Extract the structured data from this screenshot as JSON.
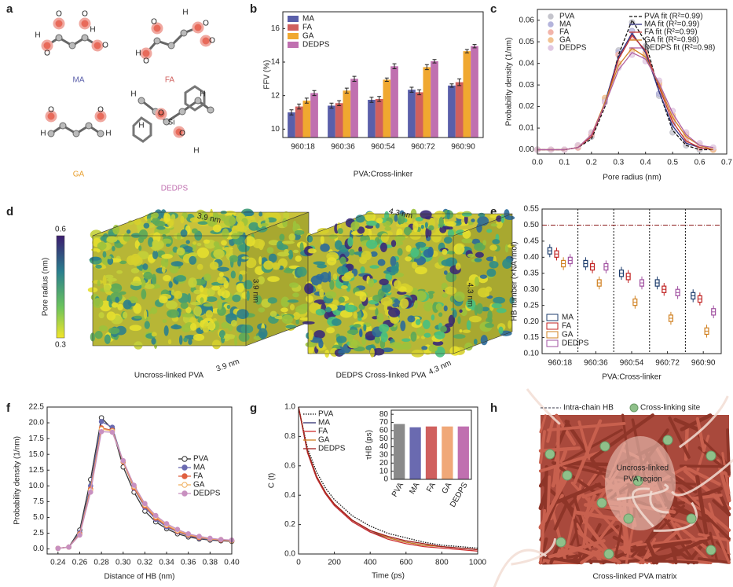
{
  "panel_labels": [
    "a",
    "b",
    "c",
    "d",
    "e",
    "f",
    "g",
    "h"
  ],
  "molecules": [
    {
      "name": "MA",
      "color": "#5a5faa",
      "atoms": [
        "H",
        "O",
        "O",
        "O",
        "O",
        "H"
      ]
    },
    {
      "name": "FA",
      "color": "#d0605e",
      "atoms": [
        "H",
        "O",
        "O",
        "O",
        "O",
        "H"
      ]
    },
    {
      "name": "GA",
      "color": "#e8a030",
      "atoms": [
        "O",
        "H",
        "O",
        "H"
      ]
    },
    {
      "name": "DEDPS",
      "color": "#c070b0",
      "atoms": [
        "Si",
        "O",
        "O",
        "H",
        "H",
        "H",
        "H"
      ]
    }
  ],
  "pore_maps": {
    "colorbar": {
      "label": "Pore radius (nm)",
      "max": 0.6,
      "min": 0.3
    },
    "cubes": [
      {
        "caption": "Uncross-linked PVA",
        "dims": [
          "3.9 nm",
          "3.9 nm",
          "3.9 nm"
        ]
      },
      {
        "caption": "DEDPS Cross-linked PVA",
        "dims": [
          "4.3 nm",
          "4.3 nm",
          "4.3 nm"
        ]
      }
    ]
  },
  "schematic": {
    "legend": [
      "Intra-chain HB",
      "Cross-linking site"
    ],
    "region": [
      "Uncross-linked",
      "PVA region"
    ],
    "caption": "Cross-linked PVA matrix"
  },
  "chart_data": [
    {
      "type": "bar",
      "xlabel": "PVA:Cross-linker",
      "ylabel": "FFV (%)",
      "categories": [
        "960:18",
        "960:36",
        "960:54",
        "960:72",
        "960:90"
      ],
      "series": [
        {
          "name": "MA",
          "color": "#5a5faa",
          "values": [
            11.0,
            11.4,
            11.75,
            12.35,
            12.6
          ],
          "errors": [
            0.15,
            0.15,
            0.15,
            0.15,
            0.1
          ]
        },
        {
          "name": "FA",
          "color": "#d0605e",
          "values": [
            11.35,
            11.55,
            11.8,
            12.2,
            12.8
          ],
          "errors": [
            0.15,
            0.15,
            0.15,
            0.15,
            0.2
          ]
        },
        {
          "name": "GA",
          "color": "#f0a830",
          "values": [
            11.7,
            12.3,
            12.95,
            13.7,
            14.65
          ],
          "errors": [
            0.15,
            0.15,
            0.1,
            0.15,
            0.1
          ]
        },
        {
          "name": "DEDPS",
          "color": "#c070b0",
          "values": [
            12.15,
            13.0,
            13.75,
            14.05,
            14.95
          ],
          "errors": [
            0.15,
            0.15,
            0.15,
            0.1,
            0.1
          ]
        }
      ],
      "ylim": [
        9.5,
        17
      ],
      "yticks": [
        10,
        12,
        14,
        16
      ],
      "legend": "upper left"
    },
    {
      "type": "line",
      "xlabel": "Pore radius (nm)",
      "ylabel": "Probability density (1/nm)",
      "x": [
        0,
        0.05,
        0.1,
        0.15,
        0.2,
        0.25,
        0.3,
        0.35,
        0.4,
        0.45,
        0.5,
        0.55,
        0.6,
        0.65
      ],
      "series": [
        {
          "name": "PVA",
          "mode": "markers",
          "color": "#c4c4cc",
          "values": [
            0,
            0,
            0,
            0.002,
            0.006,
            0.022,
            0.046,
            0.059,
            0.048,
            0.025,
            0.008,
            0.002,
            0,
            0
          ]
        },
        {
          "name": "MA",
          "mode": "markers",
          "color": "#b4b4dc",
          "values": [
            0,
            0,
            0,
            0.001,
            0.007,
            0.023,
            0.045,
            0.055,
            0.043,
            0.026,
            0.012,
            0.004,
            0.001,
            0
          ]
        },
        {
          "name": "FA",
          "mode": "markers",
          "color": "#f2b4aa",
          "values": [
            0,
            0,
            0,
            0.001,
            0.007,
            0.022,
            0.044,
            0.052,
            0.045,
            0.03,
            0.014,
            0.004,
            0.001,
            0
          ]
        },
        {
          "name": "GA",
          "mode": "markers",
          "color": "#f2c290",
          "values": [
            0,
            0,
            0,
            0.002,
            0.008,
            0.024,
            0.04,
            0.046,
            0.044,
            0.031,
            0.016,
            0.007,
            0.002,
            0
          ]
        },
        {
          "name": "DEDPS",
          "mode": "markers",
          "color": "#e0c8e2",
          "values": [
            0,
            0,
            0,
            0.002,
            0.008,
            0.022,
            0.038,
            0.044,
            0.041,
            0.032,
            0.018,
            0.008,
            0.003,
            0.001
          ]
        },
        {
          "name": "PVA fit (R²=0.99)",
          "mode": "lines",
          "dash": "dashed",
          "color": "#111111",
          "values": [
            0,
            0,
            0,
            0.001,
            0.005,
            0.02,
            0.044,
            0.06,
            0.05,
            0.027,
            0.009,
            0.002,
            0,
            0
          ]
        },
        {
          "name": "MA fit (R²=0.99)",
          "mode": "lines",
          "color": "#303080",
          "values": [
            0,
            0,
            0,
            0.001,
            0.006,
            0.022,
            0.043,
            0.054,
            0.045,
            0.027,
            0.011,
            0.003,
            0.001,
            0
          ]
        },
        {
          "name": "FA fit (R²=0.99)",
          "mode": "lines",
          "color": "#c03030",
          "values": [
            0,
            0,
            0,
            0.001,
            0.006,
            0.021,
            0.042,
            0.053,
            0.046,
            0.029,
            0.013,
            0.004,
            0.001,
            0
          ]
        },
        {
          "name": "GA fit (R²=0.98)",
          "mode": "lines",
          "color": "#d08020",
          "values": [
            0,
            0,
            0,
            0.001,
            0.007,
            0.022,
            0.039,
            0.047,
            0.043,
            0.03,
            0.015,
            0.006,
            0.002,
            0
          ]
        },
        {
          "name": "DEDPS fit (R²=0.98)",
          "mode": "lines",
          "color": "#b060a0",
          "values": [
            0,
            0,
            0,
            0.001,
            0.007,
            0.021,
            0.037,
            0.045,
            0.042,
            0.031,
            0.017,
            0.007,
            0.002,
            0.001
          ]
        }
      ],
      "xlim": [
        0,
        0.7
      ],
      "xticks": [
        {
          "value": 0,
          "label": "0.0"
        },
        0.1,
        0.2,
        0.3,
        0.4,
        0.5,
        0.6,
        0.7
      ],
      "ylim": [
        -0.002,
        0.065
      ],
      "yticks": [
        {
          "value": 0,
          "label": "0.00"
        },
        0.01,
        0.02,
        0.03,
        0.04,
        0.05,
        0.06
      ],
      "legend": "upper right"
    },
    {
      "type": "box",
      "xlabel": "PVA:Cross-linker",
      "ylabel": "HB number (×NA /mol)",
      "categories": [
        "960:18",
        "960:36",
        "960:54",
        "960:72",
        "960:90"
      ],
      "reference_line": 0.5,
      "reference_color": "#8b1a1a",
      "series": [
        {
          "name": "MA",
          "color": "#1c3c6c",
          "values": [
            0.42,
            0.38,
            0.35,
            0.32,
            0.28
          ],
          "q1": [
            0.41,
            0.37,
            0.34,
            0.31,
            0.27
          ],
          "q3": [
            0.43,
            0.39,
            0.36,
            0.33,
            0.29
          ],
          "low": [
            0.4,
            0.36,
            0.33,
            0.3,
            0.26
          ],
          "high": [
            0.44,
            0.4,
            0.37,
            0.34,
            0.3
          ]
        },
        {
          "name": "FA",
          "color": "#c02020",
          "values": [
            0.41,
            0.37,
            0.34,
            0.3,
            0.27
          ],
          "q1": [
            0.4,
            0.36,
            0.33,
            0.29,
            0.26
          ],
          "q3": [
            0.42,
            0.38,
            0.35,
            0.31,
            0.28
          ],
          "low": [
            0.39,
            0.35,
            0.32,
            0.28,
            0.25
          ],
          "high": [
            0.43,
            0.39,
            0.36,
            0.32,
            0.29
          ]
        },
        {
          "name": "GA",
          "color": "#d08020",
          "values": [
            0.38,
            0.32,
            0.26,
            0.21,
            0.17
          ],
          "q1": [
            0.37,
            0.31,
            0.25,
            0.2,
            0.16
          ],
          "q3": [
            0.39,
            0.33,
            0.27,
            0.22,
            0.18
          ],
          "low": [
            0.36,
            0.3,
            0.24,
            0.19,
            0.15
          ],
          "high": [
            0.4,
            0.34,
            0.28,
            0.23,
            0.19
          ]
        },
        {
          "name": "DEDPS",
          "color": "#a050a0",
          "values": [
            0.39,
            0.37,
            0.32,
            0.29,
            0.23
          ],
          "q1": [
            0.38,
            0.36,
            0.31,
            0.28,
            0.22
          ],
          "q3": [
            0.4,
            0.38,
            0.33,
            0.3,
            0.24
          ],
          "low": [
            0.37,
            0.35,
            0.3,
            0.27,
            0.21
          ],
          "high": [
            0.41,
            0.39,
            0.34,
            0.31,
            0.25
          ]
        }
      ],
      "ylim": [
        0.1,
        0.55
      ],
      "yticks": [
        {
          "value": 0.1,
          "label": "0.10"
        },
        0.15,
        {
          "value": 0.2,
          "label": "0.20"
        },
        0.25,
        {
          "value": 0.3,
          "label": "0.30"
        },
        0.35,
        {
          "value": 0.4,
          "label": "0.40"
        },
        0.45,
        {
          "value": 0.5,
          "label": "0.50"
        },
        0.55
      ],
      "legend": "lower left"
    },
    {
      "type": "line",
      "xlabel": "Distance of HB (nm)",
      "ylabel": "Probability density (1/nm)",
      "x": [
        0.24,
        0.25,
        0.26,
        0.27,
        0.28,
        0.29,
        0.3,
        0.31,
        0.32,
        0.33,
        0.34,
        0.35,
        0.36,
        0.37,
        0.38,
        0.39,
        0.4
      ],
      "series": [
        {
          "name": "PVA",
          "mode": "lines+markers",
          "marker": "open",
          "color": "#333333",
          "values": [
            0.1,
            0.3,
            3,
            11,
            20.8,
            19,
            13,
            9,
            6,
            4.3,
            3.2,
            2.4,
            1.9,
            1.6,
            1.4,
            1.3,
            1.2
          ]
        },
        {
          "name": "MA",
          "mode": "lines+markers",
          "marker": "filled",
          "color": "#6a6ab0",
          "values": [
            0.1,
            0.3,
            2.6,
            10,
            20.2,
            19.3,
            13.8,
            9.6,
            6.6,
            4.7,
            3.5,
            2.7,
            2.1,
            1.7,
            1.5,
            1.4,
            1.3
          ]
        },
        {
          "name": "FA",
          "mode": "lines+markers",
          "marker": "filled",
          "color": "#e06040",
          "values": [
            0.1,
            0.3,
            2.4,
            9.5,
            19.2,
            18.8,
            13.8,
            9.7,
            6.8,
            4.9,
            3.7,
            2.8,
            2.2,
            1.8,
            1.6,
            1.4,
            1.3
          ]
        },
        {
          "name": "GA",
          "mode": "lines+markers",
          "marker": "open",
          "color": "#f0b060",
          "values": [
            0.1,
            0.3,
            2.3,
            9.3,
            19,
            18.7,
            13.9,
            9.9,
            7,
            5.1,
            3.8,
            2.9,
            2.3,
            1.9,
            1.6,
            1.5,
            1.3
          ]
        },
        {
          "name": "DEDPS",
          "mode": "lines+markers",
          "marker": "filled",
          "color": "#c890c0",
          "values": [
            0.1,
            0.3,
            2.2,
            9,
            18.6,
            18.5,
            14,
            10.1,
            7.2,
            5.3,
            4,
            3.1,
            2.4,
            2,
            1.7,
            1.5,
            1.4
          ]
        }
      ],
      "xlim": [
        0.23,
        0.4
      ],
      "xticks": [
        0.24,
        0.26,
        0.28,
        {
          "value": 0.3,
          "label": "0.30"
        },
        0.32,
        0.34,
        0.36,
        0.38,
        {
          "value": 0.4,
          "label": "0.40"
        }
      ],
      "ylim": [
        -0.8,
        22.5
      ],
      "yticks": [
        {
          "value": 0,
          "label": "0.0"
        },
        2.5,
        {
          "value": 5,
          "label": "5.0"
        },
        7.5,
        {
          "value": 10,
          "label": "10.0"
        },
        12.5,
        {
          "value": 15,
          "label": "15.0"
        },
        17.5,
        {
          "value": 20,
          "label": "20.0"
        },
        22.5
      ],
      "legend": "center right"
    },
    {
      "type": "line",
      "xlabel": "Time (ps)",
      "ylabel": "C (t)",
      "x": [
        0,
        50,
        100,
        150,
        200,
        300,
        400,
        500,
        600,
        700,
        800,
        900,
        1000
      ],
      "series": [
        {
          "name": "PVA",
          "mode": "lines",
          "dash": "dotted",
          "color": "#111111",
          "values": [
            1,
            0.72,
            0.56,
            0.45,
            0.37,
            0.26,
            0.19,
            0.14,
            0.11,
            0.08,
            0.06,
            0.05,
            0.04
          ]
        },
        {
          "name": "MA",
          "mode": "lines",
          "color": "#303070",
          "values": [
            1,
            0.69,
            0.52,
            0.41,
            0.33,
            0.22,
            0.15,
            0.11,
            0.08,
            0.06,
            0.05,
            0.04,
            0.03
          ]
        },
        {
          "name": "FA",
          "mode": "lines",
          "color": "#d03030",
          "values": [
            1,
            0.69,
            0.52,
            0.41,
            0.33,
            0.22,
            0.15,
            0.1,
            0.07,
            0.05,
            0.04,
            0.03,
            0.02
          ]
        },
        {
          "name": "GA",
          "mode": "lines",
          "color": "#d08020",
          "values": [
            1,
            0.7,
            0.53,
            0.42,
            0.34,
            0.23,
            0.16,
            0.11,
            0.08,
            0.06,
            0.05,
            0.04,
            0.03
          ]
        },
        {
          "name": "DEDPS",
          "mode": "lines",
          "color": "#a02020",
          "values": [
            1,
            0.7,
            0.53,
            0.42,
            0.34,
            0.23,
            0.16,
            0.12,
            0.09,
            0.07,
            0.05,
            0.04,
            0.03
          ]
        }
      ],
      "xlim": [
        0,
        1000
      ],
      "xticks": [
        0,
        200,
        400,
        600,
        800,
        1000
      ],
      "ylim": [
        0,
        1.0
      ],
      "yticks": [
        {
          "value": 0,
          "label": "0.0"
        },
        0.2,
        0.4,
        0.6,
        0.8,
        {
          "value": 1,
          "label": "1.0"
        }
      ],
      "legend": "upper left"
    },
    {
      "type": "bar",
      "ylabel": "τHB (ps)",
      "categories": [
        "PVA",
        "MA",
        "FA",
        "GA",
        "DEDPS"
      ],
      "values": [
        68,
        64,
        65,
        65,
        65
      ],
      "colors": [
        "#8a8a8a",
        "#6a6ab0",
        "#d0605e",
        "#f0a878",
        "#c070b0"
      ],
      "ylim": [
        0,
        85
      ],
      "yticks": [
        0,
        10,
        20,
        30,
        40,
        50,
        60,
        70,
        80
      ]
    }
  ]
}
